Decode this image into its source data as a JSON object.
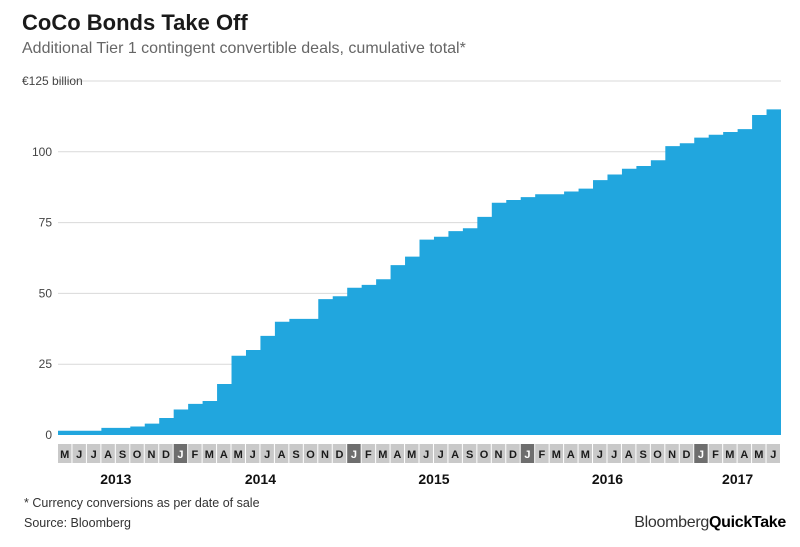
{
  "title": "CoCo Bonds Take Off",
  "subtitle": "Additional Tier 1 contingent convertible deals, cumulative total*",
  "footnote": "* Currency conversions as per date of sale",
  "source": "Source: Bloomberg",
  "brand": {
    "part1": "Bloomberg",
    "part2": "QuickTake"
  },
  "colors": {
    "area": "#21a6de",
    "grid": "#d9d9d9",
    "month_light": "#c9c9c9",
    "month_dark": "#6e6e6e"
  },
  "chart_data": {
    "type": "area",
    "title": "CoCo Bonds Take Off",
    "subtitle": "Additional Tier 1 contingent convertible deals, cumulative total*",
    "ylabel": "",
    "ylim": [
      0,
      125
    ],
    "y_ticks": [
      {
        "value": 0,
        "label": "0"
      },
      {
        "value": 25,
        "label": "25"
      },
      {
        "value": 50,
        "label": "50"
      },
      {
        "value": 75,
        "label": "75"
      },
      {
        "value": 100,
        "label": "100"
      },
      {
        "value": 125,
        "label": "€125 billion"
      }
    ],
    "months": [
      "M",
      "J",
      "J",
      "A",
      "S",
      "O",
      "N",
      "D",
      "J",
      "F",
      "M",
      "A",
      "M",
      "J",
      "J",
      "A",
      "S",
      "O",
      "N",
      "D",
      "J",
      "F",
      "M",
      "A",
      "M",
      "J",
      "J",
      "A",
      "S",
      "O",
      "N",
      "D",
      "J",
      "F",
      "M",
      "A",
      "M",
      "J",
      "J",
      "A",
      "S",
      "O",
      "N",
      "D",
      "J",
      "F",
      "M",
      "A",
      "M",
      "J"
    ],
    "month_start": "2013-05",
    "year_labels": [
      {
        "year": "2013",
        "first_month": 0,
        "last_month": 7
      },
      {
        "year": "2014",
        "first_month": 8,
        "last_month": 19
      },
      {
        "year": "2015",
        "first_month": 20,
        "last_month": 31
      },
      {
        "year": "2016",
        "first_month": 32,
        "last_month": 43
      },
      {
        "year": "2017",
        "first_month": 44,
        "last_month": 49
      }
    ],
    "series": [
      {
        "x": [
          "2013-05",
          "2013-08",
          "2013-10",
          "2013-11",
          "2013-12",
          "2014-01",
          "2014-02",
          "2014-03",
          "2014-04",
          "2014-05",
          "2014-06",
          "2014-07",
          "2014-08",
          "2014-09",
          "2014-10",
          "2014-11",
          "2014-12",
          "2015-01",
          "2015-02",
          "2015-03",
          "2015-04",
          "2015-05",
          "2015-06",
          "2015-07",
          "2015-08",
          "2015-09",
          "2015-10",
          "2015-11",
          "2015-12",
          "2016-01",
          "2016-02",
          "2016-03",
          "2016-04",
          "2016-05",
          "2016-06",
          "2016-07",
          "2016-08",
          "2016-09",
          "2016-10",
          "2016-11",
          "2016-12",
          "2017-01",
          "2017-02",
          "2017-03",
          "2017-04",
          "2017-05",
          "2017-06"
        ],
        "y": [
          1.5,
          2.5,
          3,
          4,
          6,
          9,
          11,
          12,
          18,
          28,
          30,
          35,
          40,
          41,
          41,
          48,
          49,
          52,
          53,
          55,
          60,
          63,
          69,
          70,
          72,
          73,
          77,
          82,
          83,
          84,
          85,
          85,
          86,
          87,
          90,
          92,
          94,
          95,
          97,
          102,
          103,
          105,
          106,
          107,
          108,
          113,
          115
        ]
      }
    ]
  }
}
